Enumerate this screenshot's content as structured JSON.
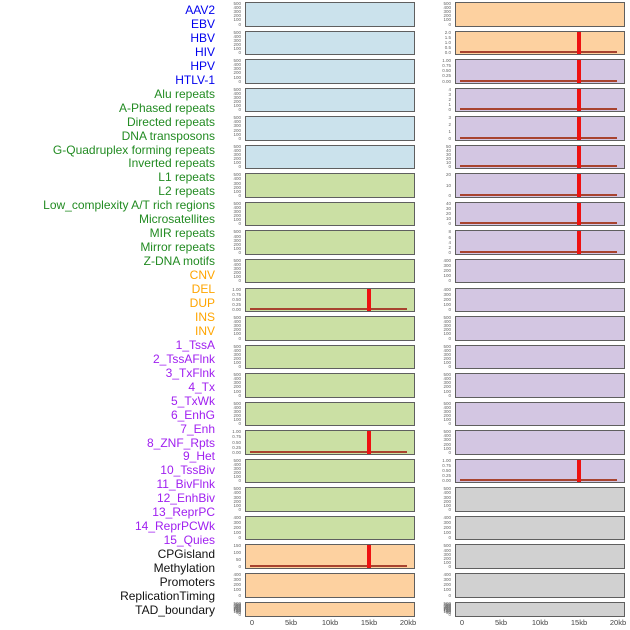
{
  "figure": {
    "description": "Genomic feature density tracks around a site, two panel columns sharing an x-axis of 0-20kb, red spike at 15kb in selected tracks",
    "x_axis_ticks": [
      "0",
      "5kb",
      "10kb",
      "15kb",
      "20kb"
    ],
    "spike_x_label": "15kb"
  },
  "chart_data": {
    "type": "area",
    "layout": "small-multiples; 22 rows x 2 columns; tracks listed in column-major order (tracks 1-22 left column, 23-44 right column); each mini-panel has its own y-axis ticks; shared x-axis 0-20kb per column; grid off; no title; red vertical spike annotation at 15kb on tracks marked spike",
    "x_ticks": [
      "0",
      "5kb",
      "10kb",
      "15kb",
      "20kb"
    ],
    "x_range_kb": [
      0,
      21
    ],
    "spike_x_label": "15kb",
    "groups": {
      "virus": {
        "label_color": "#0000ee",
        "panel_color": "#cbe2ec"
      },
      "repeat": {
        "label_color": "#228b22",
        "panel_color": "#cbe0a4"
      },
      "sv": {
        "label_color": "#ffa500",
        "panel_color": "#fdd1a0"
      },
      "chromatin": {
        "label_color": "#a020f0",
        "panel_color": "#d3c6e2"
      },
      "other": {
        "label_color": "#111111",
        "panel_color": "#d1d1d1"
      }
    },
    "colors": {
      "spike": "#ee1111",
      "baseline": "#a8432f",
      "panel_border": "#5f5f5f",
      "y_tick_text": "#666666",
      "x_tick_text": "#444444"
    },
    "tracks": [
      {
        "name": "AAV2",
        "group": "virus",
        "yticks": [
          "500",
          "400",
          "300",
          "200",
          "100",
          "0"
        ],
        "spike": false
      },
      {
        "name": "EBV",
        "group": "virus",
        "yticks": [
          "500",
          "400",
          "300",
          "200",
          "100",
          "0"
        ],
        "spike": false
      },
      {
        "name": "HBV",
        "group": "virus",
        "yticks": [
          "500",
          "400",
          "300",
          "200",
          "100",
          "0"
        ],
        "spike": false
      },
      {
        "name": "HIV",
        "group": "virus",
        "yticks": [
          "500",
          "400",
          "300",
          "200",
          "100",
          "0"
        ],
        "spike": false
      },
      {
        "name": "HPV",
        "group": "virus",
        "yticks": [
          "500",
          "400",
          "300",
          "200",
          "100",
          "0"
        ],
        "spike": false
      },
      {
        "name": "HTLV-1",
        "group": "virus",
        "yticks": [
          "500",
          "400",
          "300",
          "200",
          "100",
          "0"
        ],
        "spike": false
      },
      {
        "name": "Alu repeats",
        "group": "repeat",
        "yticks": [
          "500",
          "400",
          "300",
          "200",
          "100",
          "0"
        ],
        "spike": false
      },
      {
        "name": "A-Phased repeats",
        "group": "repeat",
        "yticks": [
          "500",
          "400",
          "300",
          "200",
          "100",
          "0"
        ],
        "spike": false
      },
      {
        "name": "Directed repeats",
        "group": "repeat",
        "yticks": [
          "500",
          "400",
          "300",
          "200",
          "100",
          "0"
        ],
        "spike": false
      },
      {
        "name": "DNA transposons",
        "group": "repeat",
        "yticks": [
          "500",
          "400",
          "300",
          "200",
          "100",
          "0"
        ],
        "spike": false
      },
      {
        "name": "G-Quadruplex forming repeats",
        "group": "repeat",
        "yticks": [
          "1.00",
          "0.75",
          "0.50",
          "0.25",
          "0.00"
        ],
        "spike": true
      },
      {
        "name": "Inverted repeats",
        "group": "repeat",
        "yticks": [
          "500",
          "400",
          "300",
          "200",
          "100",
          "0"
        ],
        "spike": false
      },
      {
        "name": "L1 repeats",
        "group": "repeat",
        "yticks": [
          "500",
          "400",
          "300",
          "200",
          "100",
          "0"
        ],
        "spike": false
      },
      {
        "name": "L2 repeats",
        "group": "repeat",
        "yticks": [
          "500",
          "400",
          "300",
          "200",
          "100",
          "0"
        ],
        "spike": false
      },
      {
        "name": "Low_complexity A/T rich regions",
        "group": "repeat",
        "yticks": [
          "500",
          "400",
          "300",
          "200",
          "100",
          "0"
        ],
        "spike": false
      },
      {
        "name": "Microsatellites",
        "group": "repeat",
        "yticks": [
          "1.00",
          "0.75",
          "0.50",
          "0.25",
          "0.00"
        ],
        "spike": true
      },
      {
        "name": "MIR repeats",
        "group": "repeat",
        "yticks": [
          "500",
          "400",
          "300",
          "200",
          "100",
          "0"
        ],
        "spike": false
      },
      {
        "name": "Mirror repeats",
        "group": "repeat",
        "yticks": [
          "500",
          "400",
          "300",
          "200",
          "100",
          "0"
        ],
        "spike": false
      },
      {
        "name": "Z-DNA motifs",
        "group": "repeat",
        "yticks": [
          "400",
          "300",
          "200",
          "100",
          "0"
        ],
        "spike": false
      },
      {
        "name": "CNV",
        "group": "sv",
        "yticks": [
          "150",
          "100",
          "50",
          "0"
        ],
        "spike": true
      },
      {
        "name": "DEL",
        "group": "sv",
        "yticks": [
          "400",
          "300",
          "200",
          "100",
          "0"
        ],
        "spike": false
      },
      {
        "name": "DUP",
        "group": "sv",
        "yticks": [
          "500",
          "450",
          "400",
          "350",
          "300",
          "250",
          "200",
          "150",
          "100",
          "50",
          "0"
        ],
        "spike": false
      },
      {
        "name": "INS",
        "group": "sv",
        "yticks": [
          "500",
          "400",
          "300",
          "200",
          "100",
          "0"
        ],
        "spike": false
      },
      {
        "name": "INV",
        "group": "sv",
        "yticks": [
          "2.0",
          "1.5",
          "1.0",
          "0.5",
          "0.0"
        ],
        "spike": true
      },
      {
        "name": "1_TssA",
        "group": "chromatin",
        "yticks": [
          "1.00",
          "0.75",
          "0.50",
          "0.25",
          "0.00"
        ],
        "spike": true
      },
      {
        "name": "2_TssAFlnk",
        "group": "chromatin",
        "yticks": [
          "4",
          "3",
          "2",
          "1",
          "0"
        ],
        "spike": true
      },
      {
        "name": "3_TxFlnk",
        "group": "chromatin",
        "yticks": [
          "3",
          "2",
          "1",
          "0"
        ],
        "spike": true
      },
      {
        "name": "4_Tx",
        "group": "chromatin",
        "yticks": [
          "50",
          "40",
          "30",
          "20",
          "10",
          "0"
        ],
        "spike": true
      },
      {
        "name": "5_TxWk",
        "group": "chromatin",
        "yticks": [
          "20",
          "10",
          "0"
        ],
        "spike": true
      },
      {
        "name": "6_EnhG",
        "group": "chromatin",
        "yticks": [
          "40",
          "30",
          "20",
          "10",
          "0"
        ],
        "spike": true
      },
      {
        "name": "7_Enh",
        "group": "chromatin",
        "yticks": [
          "8",
          "6",
          "4",
          "2",
          "0"
        ],
        "spike": true
      },
      {
        "name": "8_ZNF_Rpts",
        "group": "chromatin",
        "yticks": [
          "400",
          "300",
          "200",
          "100",
          "0"
        ],
        "spike": false
      },
      {
        "name": "9_Het",
        "group": "chromatin",
        "yticks": [
          "400",
          "300",
          "200",
          "100",
          "0"
        ],
        "spike": false
      },
      {
        "name": "10_TssBiv",
        "group": "chromatin",
        "yticks": [
          "500",
          "400",
          "300",
          "200",
          "100",
          "0"
        ],
        "spike": false
      },
      {
        "name": "11_BivFlnk",
        "group": "chromatin",
        "yticks": [
          "500",
          "400",
          "300",
          "200",
          "100",
          "0"
        ],
        "spike": false
      },
      {
        "name": "12_EnhBiv",
        "group": "chromatin",
        "yticks": [
          "500",
          "400",
          "300",
          "200",
          "100",
          "0"
        ],
        "spike": false
      },
      {
        "name": "13_ReprPC",
        "group": "chromatin",
        "yticks": [
          "500",
          "400",
          "300",
          "200",
          "100",
          "0"
        ],
        "spike": false
      },
      {
        "name": "14_ReprPCWk",
        "group": "chromatin",
        "yticks": [
          "500",
          "400",
          "300",
          "200",
          "100",
          "0"
        ],
        "spike": false
      },
      {
        "name": "15_Quies",
        "group": "chromatin",
        "yticks": [
          "1.00",
          "0.75",
          "0.50",
          "0.25",
          "0.00"
        ],
        "spike": true
      },
      {
        "name": "CPGisland",
        "group": "other",
        "yticks": [
          "500",
          "400",
          "300",
          "200",
          "100",
          "0"
        ],
        "spike": false
      },
      {
        "name": "Methylation",
        "group": "other",
        "yticks": [
          "400",
          "300",
          "200",
          "100",
          "0"
        ],
        "spike": false
      },
      {
        "name": "Promoters",
        "group": "other",
        "yticks": [
          "500",
          "400",
          "300",
          "200",
          "100",
          "0"
        ],
        "spike": false
      },
      {
        "name": "ReplicationTiming",
        "group": "other",
        "yticks": [
          "400",
          "300",
          "200",
          "100",
          "0"
        ],
        "spike": false
      },
      {
        "name": "TAD_boundary",
        "group": "other",
        "yticks": [
          "500",
          "450",
          "400",
          "350",
          "300",
          "250",
          "200",
          "150",
          "100",
          "50",
          "0"
        ],
        "spike": false
      }
    ]
  }
}
